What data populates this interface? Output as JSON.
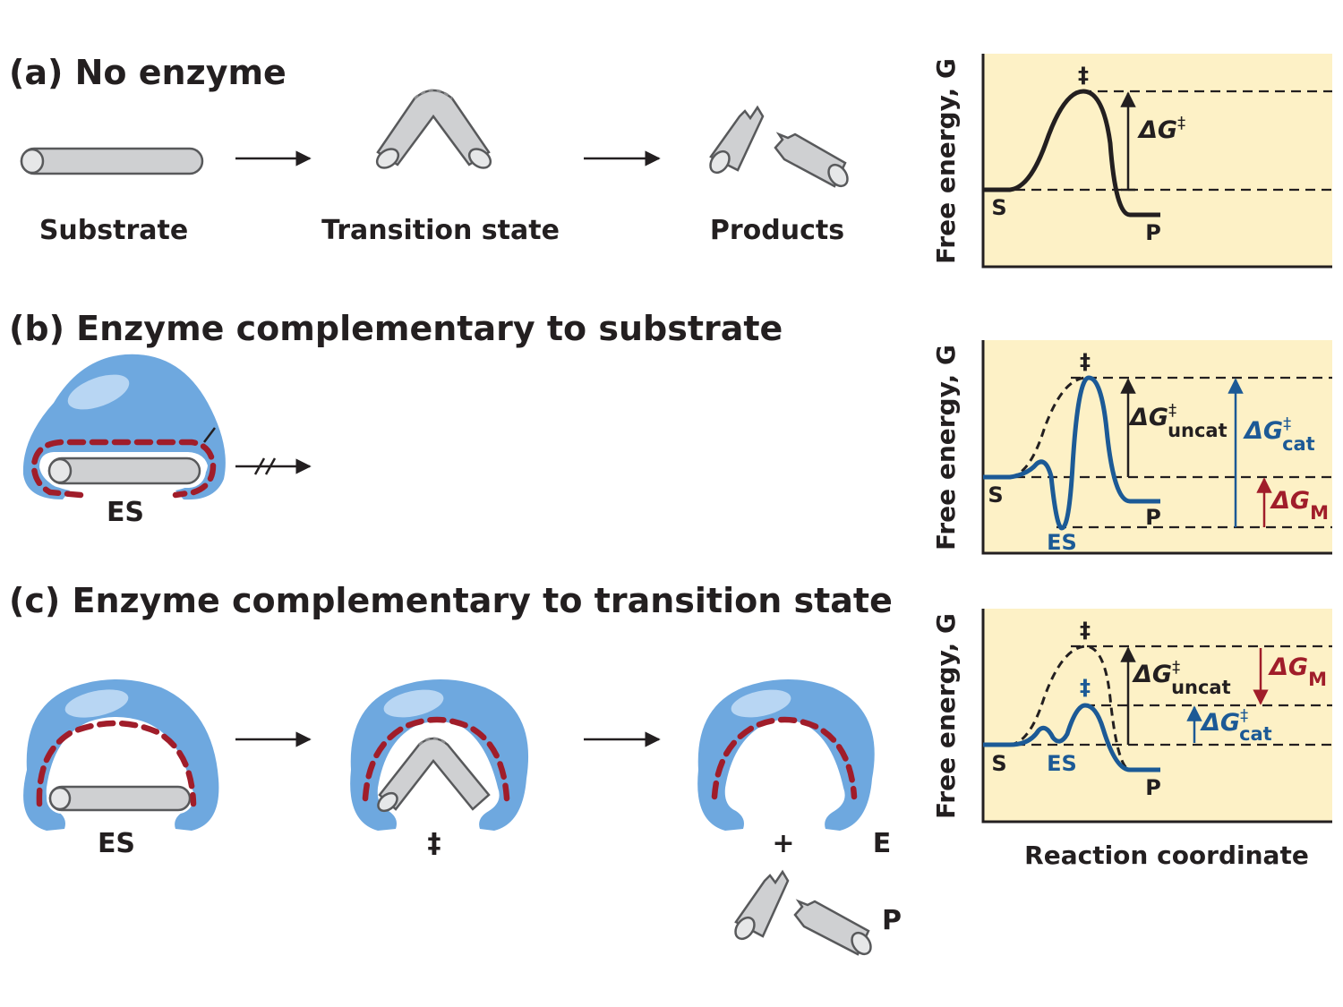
{
  "panels": {
    "a": {
      "title": "(a) No enzyme",
      "substrate": "Substrate",
      "transition": "Transition state",
      "products": "Products"
    },
    "b": {
      "title": "(b) Enzyme complementary to substrate",
      "es": "ES"
    },
    "c": {
      "title": "(c) Enzyme complementary to transition state",
      "es": "ES",
      "ts": "‡",
      "plus": "+",
      "e": "E",
      "p": "P"
    }
  },
  "graphs": {
    "ylabel": "Free energy, G",
    "xlabel": "Reaction coordinate",
    "a": {
      "ts": "‡",
      "s": "S",
      "p": "P",
      "dG": "ΔG",
      "dGsup": "‡"
    },
    "b": {
      "ts": "‡",
      "s": "S",
      "p": "P",
      "es": "ES",
      "dGuncat": "ΔG",
      "dGuncat_sup": "‡",
      "dGuncat_sub": "uncat",
      "dGcat": "ΔG",
      "dGcat_sup": "‡",
      "dGcat_sub": "cat",
      "dGM": "ΔG",
      "dGM_sub": "M"
    },
    "c": {
      "ts": "‡",
      "ts2": "‡",
      "s": "S",
      "p": "P",
      "es": "ES",
      "dGuncat": "ΔG",
      "dGuncat_sup": "‡",
      "dGuncat_sub": "uncat",
      "dGcat": "ΔG",
      "dGcat_sup": "‡",
      "dGcat_sub": "cat",
      "dGM": "ΔG",
      "dGM_sub": "M"
    }
  },
  "colors": {
    "panel_bg": "#fdf1c6",
    "enzyme": "#6ea8df",
    "binding_site": "#a01d2a",
    "catalyzed": "#1c5a96",
    "substrate": "#cfd0d2"
  },
  "icons": [
    "arrow-icon",
    "blocked-arrow-icon",
    "enzyme-icon",
    "substrate-rod-icon",
    "broken-product-icon"
  ]
}
